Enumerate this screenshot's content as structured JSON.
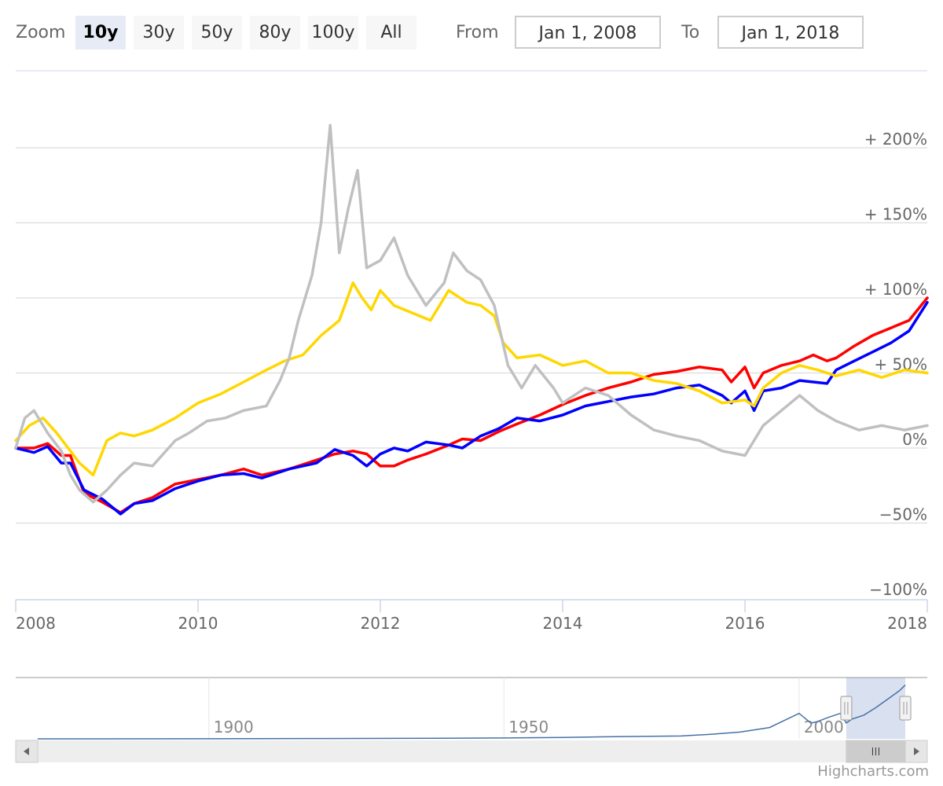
{
  "range_selector": {
    "zoom_label": "Zoom",
    "buttons": [
      "10y",
      "30y",
      "50y",
      "80y",
      "100y",
      "All"
    ],
    "active": "10y",
    "from_label": "From",
    "from_value": "Jan 1, 2008",
    "to_label": "To",
    "to_value": "Jan 1, 2018"
  },
  "chart_data": {
    "type": "line",
    "x_domain": [
      2008,
      2018
    ],
    "y_range": [
      -100,
      230
    ],
    "y_ticks": [
      {
        "value": 200,
        "label": "+ 200%"
      },
      {
        "value": 150,
        "label": "+ 150%"
      },
      {
        "value": 100,
        "label": "+ 100%"
      },
      {
        "value": 50,
        "label": "+ 50%"
      },
      {
        "value": 0,
        "label": "0%"
      },
      {
        "value": -50,
        "label": "−50%"
      },
      {
        "value": -100,
        "label": "−100%"
      }
    ],
    "x_ticks": [
      {
        "value": 2008,
        "label": "2008"
      },
      {
        "value": 2010,
        "label": "2010"
      },
      {
        "value": 2012,
        "label": "2012"
      },
      {
        "value": 2014,
        "label": "2014"
      },
      {
        "value": 2016,
        "label": "2016"
      },
      {
        "value": 2018,
        "label": "2018"
      }
    ],
    "grid": true,
    "series": [
      {
        "color": "#ff0000",
        "points": [
          [
            2008.0,
            0
          ],
          [
            2008.2,
            0
          ],
          [
            2008.35,
            3
          ],
          [
            2008.5,
            -5
          ],
          [
            2008.6,
            -5
          ],
          [
            2008.75,
            -30
          ],
          [
            2008.95,
            -36
          ],
          [
            2009.15,
            -43
          ],
          [
            2009.3,
            -37
          ],
          [
            2009.5,
            -33
          ],
          [
            2009.75,
            -24
          ],
          [
            2010.0,
            -21
          ],
          [
            2010.25,
            -18
          ],
          [
            2010.5,
            -14
          ],
          [
            2010.7,
            -18
          ],
          [
            2011.0,
            -14
          ],
          [
            2011.3,
            -8
          ],
          [
            2011.5,
            -4
          ],
          [
            2011.7,
            -2
          ],
          [
            2011.85,
            -4
          ],
          [
            2012.0,
            -12
          ],
          [
            2012.15,
            -12
          ],
          [
            2012.3,
            -8
          ],
          [
            2012.5,
            -4
          ],
          [
            2012.75,
            2
          ],
          [
            2012.9,
            6
          ],
          [
            2013.1,
            5
          ],
          [
            2013.3,
            11
          ],
          [
            2013.5,
            16
          ],
          [
            2013.75,
            22
          ],
          [
            2014.0,
            29
          ],
          [
            2014.25,
            35
          ],
          [
            2014.5,
            40
          ],
          [
            2014.75,
            44
          ],
          [
            2015.0,
            49
          ],
          [
            2015.25,
            51
          ],
          [
            2015.5,
            54
          ],
          [
            2015.75,
            52
          ],
          [
            2015.85,
            44
          ],
          [
            2016.0,
            54
          ],
          [
            2016.1,
            40
          ],
          [
            2016.2,
            50
          ],
          [
            2016.4,
            55
          ],
          [
            2016.6,
            58
          ],
          [
            2016.75,
            62
          ],
          [
            2016.9,
            58
          ],
          [
            2017.0,
            60
          ],
          [
            2017.2,
            68
          ],
          [
            2017.4,
            75
          ],
          [
            2017.6,
            80
          ],
          [
            2017.8,
            85
          ],
          [
            2018.0,
            100
          ]
        ]
      },
      {
        "color": "#0000ff",
        "points": [
          [
            2008.0,
            0
          ],
          [
            2008.2,
            -3
          ],
          [
            2008.35,
            1
          ],
          [
            2008.5,
            -10
          ],
          [
            2008.6,
            -10
          ],
          [
            2008.75,
            -28
          ],
          [
            2008.95,
            -34
          ],
          [
            2009.15,
            -44
          ],
          [
            2009.3,
            -37
          ],
          [
            2009.5,
            -35
          ],
          [
            2009.75,
            -27
          ],
          [
            2010.0,
            -22
          ],
          [
            2010.25,
            -18
          ],
          [
            2010.5,
            -17
          ],
          [
            2010.7,
            -20
          ],
          [
            2011.0,
            -14
          ],
          [
            2011.3,
            -10
          ],
          [
            2011.5,
            -1
          ],
          [
            2011.7,
            -5
          ],
          [
            2011.85,
            -12
          ],
          [
            2012.0,
            -4
          ],
          [
            2012.15,
            0
          ],
          [
            2012.3,
            -2
          ],
          [
            2012.5,
            4
          ],
          [
            2012.75,
            2
          ],
          [
            2012.9,
            0
          ],
          [
            2013.1,
            8
          ],
          [
            2013.3,
            13
          ],
          [
            2013.5,
            20
          ],
          [
            2013.75,
            18
          ],
          [
            2014.0,
            22
          ],
          [
            2014.25,
            28
          ],
          [
            2014.5,
            31
          ],
          [
            2014.75,
            34
          ],
          [
            2015.0,
            36
          ],
          [
            2015.25,
            40
          ],
          [
            2015.5,
            42
          ],
          [
            2015.75,
            35
          ],
          [
            2015.85,
            30
          ],
          [
            2016.0,
            38
          ],
          [
            2016.1,
            25
          ],
          [
            2016.2,
            38
          ],
          [
            2016.4,
            40
          ],
          [
            2016.6,
            45
          ],
          [
            2016.75,
            44
          ],
          [
            2016.9,
            43
          ],
          [
            2017.0,
            52
          ],
          [
            2017.2,
            58
          ],
          [
            2017.4,
            64
          ],
          [
            2017.6,
            70
          ],
          [
            2017.8,
            78
          ],
          [
            2018.0,
            97
          ]
        ]
      },
      {
        "color": "#ffd700",
        "points": [
          [
            2008.0,
            5
          ],
          [
            2008.15,
            15
          ],
          [
            2008.3,
            20
          ],
          [
            2008.45,
            10
          ],
          [
            2008.6,
            -2
          ],
          [
            2008.7,
            -10
          ],
          [
            2008.85,
            -18
          ],
          [
            2009.0,
            5
          ],
          [
            2009.15,
            10
          ],
          [
            2009.3,
            8
          ],
          [
            2009.5,
            12
          ],
          [
            2009.75,
            20
          ],
          [
            2010.0,
            30
          ],
          [
            2010.25,
            36
          ],
          [
            2010.5,
            44
          ],
          [
            2010.75,
            52
          ],
          [
            2010.95,
            58
          ],
          [
            2011.15,
            62
          ],
          [
            2011.35,
            75
          ],
          [
            2011.55,
            85
          ],
          [
            2011.7,
            110
          ],
          [
            2011.8,
            100
          ],
          [
            2011.9,
            92
          ],
          [
            2012.0,
            105
          ],
          [
            2012.15,
            95
          ],
          [
            2012.35,
            90
          ],
          [
            2012.55,
            85
          ],
          [
            2012.75,
            105
          ],
          [
            2012.95,
            97
          ],
          [
            2013.1,
            95
          ],
          [
            2013.25,
            88
          ],
          [
            2013.35,
            70
          ],
          [
            2013.5,
            60
          ],
          [
            2013.75,
            62
          ],
          [
            2014.0,
            55
          ],
          [
            2014.25,
            58
          ],
          [
            2014.5,
            50
          ],
          [
            2014.75,
            50
          ],
          [
            2015.0,
            45
          ],
          [
            2015.25,
            43
          ],
          [
            2015.5,
            38
          ],
          [
            2015.75,
            30
          ],
          [
            2016.0,
            32
          ],
          [
            2016.1,
            28
          ],
          [
            2016.2,
            40
          ],
          [
            2016.4,
            50
          ],
          [
            2016.6,
            55
          ],
          [
            2016.8,
            52
          ],
          [
            2017.0,
            48
          ],
          [
            2017.25,
            52
          ],
          [
            2017.5,
            47
          ],
          [
            2017.75,
            52
          ],
          [
            2018.0,
            50
          ]
        ]
      },
      {
        "color": "#c0c0c0",
        "points": [
          [
            2008.0,
            0
          ],
          [
            2008.1,
            20
          ],
          [
            2008.2,
            25
          ],
          [
            2008.35,
            10
          ],
          [
            2008.5,
            -2
          ],
          [
            2008.6,
            -18
          ],
          [
            2008.7,
            -28
          ],
          [
            2008.85,
            -36
          ],
          [
            2009.0,
            -28
          ],
          [
            2009.15,
            -18
          ],
          [
            2009.3,
            -10
          ],
          [
            2009.5,
            -12
          ],
          [
            2009.75,
            5
          ],
          [
            2009.9,
            10
          ],
          [
            2010.1,
            18
          ],
          [
            2010.3,
            20
          ],
          [
            2010.5,
            25
          ],
          [
            2010.75,
            28
          ],
          [
            2010.9,
            45
          ],
          [
            2011.0,
            60
          ],
          [
            2011.1,
            85
          ],
          [
            2011.25,
            115
          ],
          [
            2011.35,
            150
          ],
          [
            2011.45,
            215
          ],
          [
            2011.55,
            130
          ],
          [
            2011.65,
            160
          ],
          [
            2011.75,
            185
          ],
          [
            2011.85,
            120
          ],
          [
            2012.0,
            125
          ],
          [
            2012.15,
            140
          ],
          [
            2012.3,
            115
          ],
          [
            2012.5,
            95
          ],
          [
            2012.7,
            110
          ],
          [
            2012.8,
            130
          ],
          [
            2012.95,
            118
          ],
          [
            2013.1,
            112
          ],
          [
            2013.25,
            95
          ],
          [
            2013.4,
            55
          ],
          [
            2013.55,
            40
          ],
          [
            2013.7,
            55
          ],
          [
            2013.9,
            40
          ],
          [
            2014.0,
            30
          ],
          [
            2014.25,
            40
          ],
          [
            2014.5,
            35
          ],
          [
            2014.75,
            22
          ],
          [
            2015.0,
            12
          ],
          [
            2015.25,
            8
          ],
          [
            2015.5,
            5
          ],
          [
            2015.75,
            -2
          ],
          [
            2016.0,
            -5
          ],
          [
            2016.2,
            15
          ],
          [
            2016.4,
            25
          ],
          [
            2016.6,
            35
          ],
          [
            2016.8,
            25
          ],
          [
            2017.0,
            18
          ],
          [
            2017.25,
            12
          ],
          [
            2017.5,
            15
          ],
          [
            2017.75,
            12
          ],
          [
            2018.0,
            15
          ]
        ]
      }
    ],
    "navigator": {
      "x_domain": [
        1871,
        2018
      ],
      "labels": [
        {
          "value": 1900,
          "label": "1900"
        },
        {
          "value": 1950,
          "label": "1950"
        },
        {
          "value": 2000,
          "label": "2000"
        }
      ],
      "selected_range": [
        2008,
        2018
      ],
      "color": "#4572a7",
      "series": [
        [
          1871,
          0
        ],
        [
          1900,
          0.2
        ],
        [
          1920,
          0.5
        ],
        [
          1940,
          1
        ],
        [
          1950,
          1.5
        ],
        [
          1960,
          2.5
        ],
        [
          1970,
          4
        ],
        [
          1980,
          5
        ],
        [
          1985,
          8
        ],
        [
          1990,
          12
        ],
        [
          1995,
          20
        ],
        [
          1998,
          35
        ],
        [
          2000,
          45
        ],
        [
          2002,
          28
        ],
        [
          2003,
          30
        ],
        [
          2005,
          38
        ],
        [
          2007,
          45
        ],
        [
          2008,
          28
        ],
        [
          2009,
          35
        ],
        [
          2011,
          42
        ],
        [
          2013,
          55
        ],
        [
          2015,
          70
        ],
        [
          2017,
          85
        ],
        [
          2018,
          95
        ]
      ]
    }
  },
  "credits": "Highcharts.com"
}
